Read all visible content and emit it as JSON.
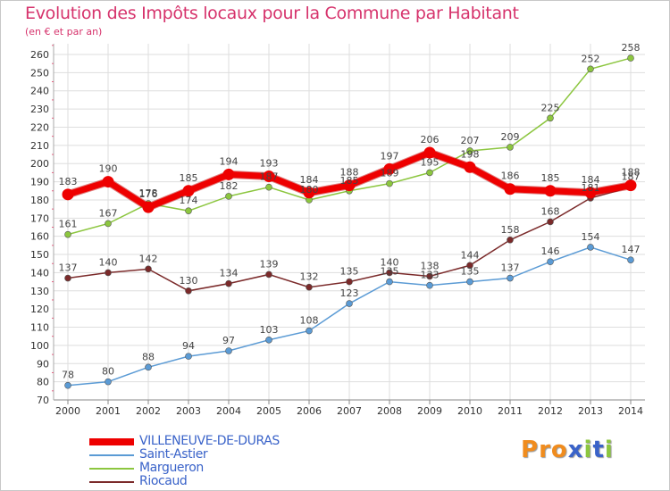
{
  "header": {
    "title": "Evolution des Impôts locaux pour la Commune par Habitant",
    "subtitle": "(en € et par an)"
  },
  "brand": {
    "logo_text": "Proxiti",
    "logo_colors": [
      "#f08c1e",
      "#f08c1e",
      "#f08c1e",
      "#3a63c9",
      "#8cc63f",
      "#3a63c9",
      "#8cc63f"
    ]
  },
  "chart_data": {
    "type": "line",
    "title": "Evolution des Impôts locaux pour la Commune par Habitant",
    "subtitle": "(en € et par an)",
    "xlabel": "",
    "ylabel": "",
    "x": [
      "2000",
      "2001",
      "2002",
      "2003",
      "2004",
      "2005",
      "2006",
      "2007",
      "2008",
      "2009",
      "2010",
      "2011",
      "2012",
      "2013",
      "2014"
    ],
    "ylim": [
      70,
      260
    ],
    "yticks": [
      70,
      80,
      90,
      100,
      110,
      120,
      130,
      140,
      150,
      160,
      170,
      180,
      190,
      200,
      210,
      220,
      230,
      240,
      250,
      260
    ],
    "grid": true,
    "legend_position": "bottom-left",
    "series": [
      {
        "name": "VILLENEUVE-DE-DURAS",
        "color": "#ee0000",
        "thick": true,
        "values": [
          183,
          190,
          176,
          185,
          194,
          193,
          184,
          188,
          197,
          206,
          198,
          186,
          185,
          184,
          188
        ],
        "labels": [
          "183",
          "190",
          "176",
          "185",
          "194",
          "193",
          "184",
          "188",
          "197",
          "206",
          "198",
          "186",
          "185",
          "184",
          "188"
        ]
      },
      {
        "name": "Saint-Astier",
        "color": "#5b9bd5",
        "thick": false,
        "values": [
          78,
          80,
          88,
          94,
          97,
          103,
          108,
          123,
          135,
          133,
          135,
          137,
          146,
          154,
          147
        ],
        "labels": [
          "78",
          "80",
          "88",
          "94",
          "97",
          "103",
          "108",
          "123",
          "135",
          "133",
          "135",
          "137",
          "146",
          "154",
          "147"
        ]
      },
      {
        "name": "Margueron",
        "color": "#8cc63f",
        "thick": false,
        "values": [
          161,
          167,
          178,
          174,
          182,
          187,
          180,
          185,
          189,
          195,
          207,
          209,
          225,
          252,
          258
        ],
        "labels": [
          "161",
          "167",
          "178",
          "174",
          "182",
          "187",
          "180",
          "185",
          "189",
          "195",
          "207",
          "209",
          "225",
          "252",
          "258"
        ]
      },
      {
        "name": "Riocaud",
        "color": "#7b2a2a",
        "thick": false,
        "values": [
          137,
          140,
          142,
          130,
          134,
          139,
          132,
          135,
          140,
          138,
          144,
          158,
          168,
          181,
          187
        ],
        "labels": [
          "137",
          "140",
          "142",
          "130",
          "134",
          "139",
          "132",
          "135",
          "140",
          "138",
          "144",
          "158",
          "168",
          "181",
          "187"
        ]
      }
    ]
  }
}
